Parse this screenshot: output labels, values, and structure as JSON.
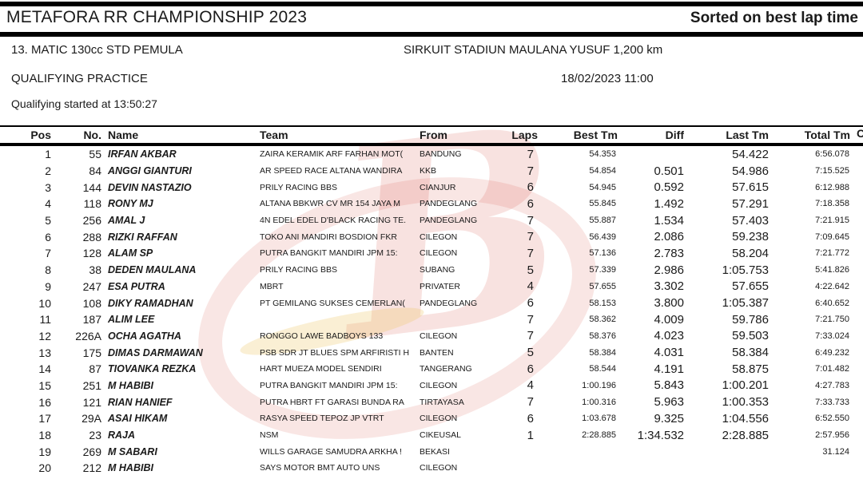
{
  "header": {
    "title": "METAFORA RR CHAMPIONSHIP 2023",
    "sort_label": "Sorted on best lap time"
  },
  "event": {
    "class_name": "13. MATIC 130cc STD PEMULA",
    "circuit": "SIRKUIT STADIUN MAULANA YUSUF 1,200 km",
    "session": "QUALIFYING PRACTICE",
    "datetime": "18/02/2023 11:00",
    "started_note": "Qualifying started at 13:50:27"
  },
  "watermark": {
    "letter": "B"
  },
  "table": {
    "columns": [
      "Pos",
      "No.",
      "Name",
      "Team",
      "From",
      "Laps",
      "Best Tm",
      "Diff",
      "Last Tm",
      "Total Tm"
    ],
    "overflow_fragment": "C",
    "rows": [
      {
        "pos": "1",
        "no": "55",
        "name": "IRFAN AKBAR",
        "team": "ZAIRA KERAMIK ARF FARHAN MOT(",
        "from": "BANDUNG",
        "laps": "7",
        "best": "54.353",
        "diff": "",
        "last": "54.422",
        "total": "6:56.078"
      },
      {
        "pos": "2",
        "no": "84",
        "name": "ANGGI GIANTURI",
        "team": "AR SPEED RACE ALTANA WANDIRA",
        "from": "KKB",
        "laps": "7",
        "best": "54.854",
        "diff": "0.501",
        "last": "54.986",
        "total": "7:15.525"
      },
      {
        "pos": "3",
        "no": "144",
        "name": "DEVIN NASTAZIO",
        "team": "PRILY RACING BBS",
        "from": "CIANJUR",
        "laps": "6",
        "best": "54.945",
        "diff": "0.592",
        "last": "57.615",
        "total": "6:12.988"
      },
      {
        "pos": "4",
        "no": "118",
        "name": "RONY MJ",
        "team": "ALTANA BBKWR CV MR 154 JAYA M",
        "from": "PANDEGLANG",
        "laps": "6",
        "best": "55.845",
        "diff": "1.492",
        "last": "57.291",
        "total": "7:18.358"
      },
      {
        "pos": "5",
        "no": "256",
        "name": "AMAL J",
        "team": "4N EDEL EDEL D'BLACK RACING TE.",
        "from": "PANDEGLANG",
        "laps": "7",
        "best": "55.887",
        "diff": "1.534",
        "last": "57.403",
        "total": "7:21.915"
      },
      {
        "pos": "6",
        "no": "288",
        "name": "RIZKI RAFFAN",
        "team": "TOKO ANI MANDIRI BOSDION FKR",
        "from": "CILEGON",
        "laps": "7",
        "best": "56.439",
        "diff": "2.086",
        "last": "59.238",
        "total": "7:09.645"
      },
      {
        "pos": "7",
        "no": "128",
        "name": "ALAM SP",
        "team": "PUTRA BANGKIT MANDIRI JPM 15:",
        "from": "CILEGON",
        "laps": "7",
        "best": "57.136",
        "diff": "2.783",
        "last": "58.204",
        "total": "7:21.772"
      },
      {
        "pos": "8",
        "no": "38",
        "name": "DEDEN MAULANA",
        "team": "PRILY RACING BBS",
        "from": "SUBANG",
        "laps": "5",
        "best": "57.339",
        "diff": "2.986",
        "last": "1:05.753",
        "total": "5:41.826"
      },
      {
        "pos": "9",
        "no": "247",
        "name": "ESA PUTRA",
        "team": "MBRT",
        "from": "PRIVATER",
        "laps": "4",
        "best": "57.655",
        "diff": "3.302",
        "last": "57.655",
        "total": "4:22.642"
      },
      {
        "pos": "10",
        "no": "108",
        "name": "DIKY RAMADHAN",
        "team": "PT GEMILANG SUKSES CEMERLAN(",
        "from": "PANDEGLANG",
        "laps": "6",
        "best": "58.153",
        "diff": "3.800",
        "last": "1:05.387",
        "total": "6:40.652"
      },
      {
        "pos": "11",
        "no": "187",
        "name": "ALIM LEE",
        "team": "",
        "from": "",
        "laps": "7",
        "best": "58.362",
        "diff": "4.009",
        "last": "59.786",
        "total": "7:21.750"
      },
      {
        "pos": "12",
        "no": "226A",
        "name": "OCHA AGATHA",
        "team": "RONGGO LAWE BADBOYS 133",
        "from": "CILEGON",
        "laps": "7",
        "best": "58.376",
        "diff": "4.023",
        "last": "59.503",
        "total": "7:33.024"
      },
      {
        "pos": "13",
        "no": "175",
        "name": "DIMAS DARMAWAN",
        "team": "PSB SDR JT BLUES SPM ARFIRISTI H",
        "from": "BANTEN",
        "laps": "5",
        "best": "58.384",
        "diff": "4.031",
        "last": "58.384",
        "total": "6:49.232"
      },
      {
        "pos": "14",
        "no": "87",
        "name": "TIOVANKA REZKA",
        "team": "HART MUEZA MODEL SENDIRI",
        "from": "TANGERANG",
        "laps": "6",
        "best": "58.544",
        "diff": "4.191",
        "last": "58.875",
        "total": "7:01.482"
      },
      {
        "pos": "15",
        "no": "251",
        "name": "M HABIBI",
        "team": "PUTRA BANGKIT MANDIRI JPM 15:",
        "from": "CILEGON",
        "laps": "4",
        "best": "1:00.196",
        "diff": "5.843",
        "last": "1:00.201",
        "total": "4:27.783"
      },
      {
        "pos": "16",
        "no": "121",
        "name": "RIAN HANIEF",
        "team": "PUTRA HBRT FT GARASI BUNDA RA",
        "from": "TIRTAYASA",
        "laps": "7",
        "best": "1:00.316",
        "diff": "5.963",
        "last": "1:00.353",
        "total": "7:33.733"
      },
      {
        "pos": "17",
        "no": "29A",
        "name": "ASAI HIKAM",
        "team": "RASYA SPEED TEPOZ JP VTRT",
        "from": "CILEGON",
        "laps": "6",
        "best": "1:03.678",
        "diff": "9.325",
        "last": "1:04.556",
        "total": "6:52.550"
      },
      {
        "pos": "18",
        "no": "23",
        "name": "RAJA",
        "team": "NSM",
        "from": "CIKEUSAL",
        "laps": "1",
        "best": "2:28.885",
        "diff": "1:34.532",
        "last": "2:28.885",
        "total": "2:57.956"
      },
      {
        "pos": "19",
        "no": "269",
        "name": "M SABARI",
        "team": "WILLS GARAGE SAMUDRA ARKHA !",
        "from": "BEKASI",
        "laps": "",
        "best": "",
        "diff": "",
        "last": "",
        "total": "31.124"
      },
      {
        "pos": "20",
        "no": "212",
        "name": "M HABIBI",
        "team": "SAYS MOTOR BMT AUTO UNS",
        "from": "CILEGON",
        "laps": "",
        "best": "",
        "diff": "",
        "last": "",
        "total": ""
      }
    ]
  }
}
